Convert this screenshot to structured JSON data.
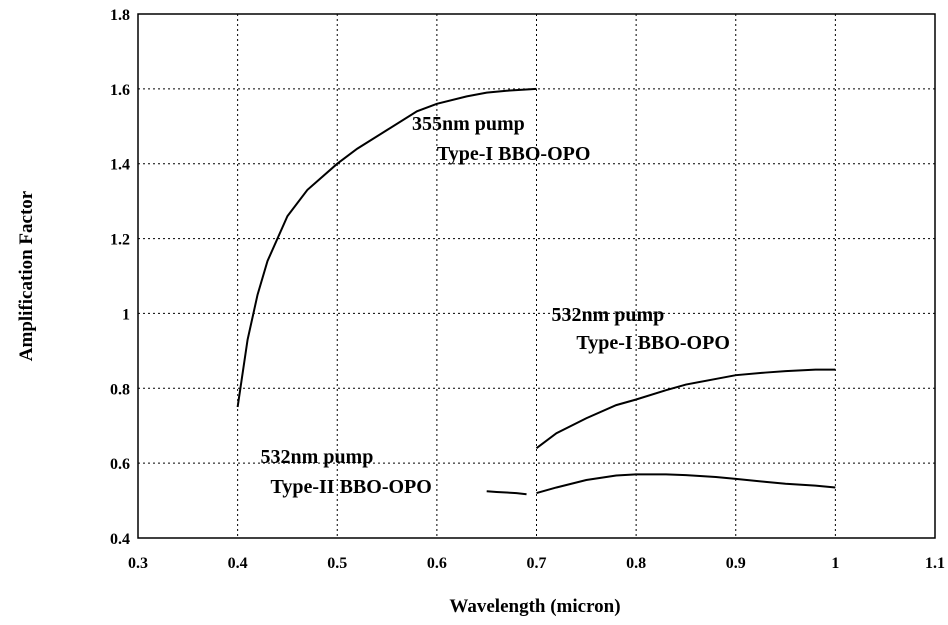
{
  "chart_data": {
    "type": "line",
    "xlabel": "Wavelength  (micron)",
    "ylabel": "Amplification Factor",
    "xlim": [
      0.3,
      1.1
    ],
    "ylim": [
      0.4,
      1.8
    ],
    "xticks": [
      "0.3",
      "0.4",
      "0.5",
      "0.6",
      "0.7",
      "0.8",
      "0.9",
      "1",
      "1.1"
    ],
    "yticks": [
      "0.4",
      "0.6",
      "0.8",
      "1",
      "1.2",
      "1.4",
      "1.6",
      "1.8"
    ],
    "grid": true,
    "series": [
      {
        "x": [
          0.4,
          0.41,
          0.42,
          0.43,
          0.45,
          0.47,
          0.5,
          0.52,
          0.55,
          0.58,
          0.6,
          0.63,
          0.65,
          0.67,
          0.7
        ],
        "y": [
          0.75,
          0.93,
          1.05,
          1.14,
          1.26,
          1.33,
          1.4,
          1.44,
          1.49,
          1.54,
          1.56,
          1.58,
          1.59,
          1.595,
          1.6
        ]
      },
      {
        "x": [
          0.7,
          0.72,
          0.75,
          0.78,
          0.8,
          0.83,
          0.85,
          0.88,
          0.9,
          0.93,
          0.95,
          0.98,
          1.0
        ],
        "y": [
          0.64,
          0.68,
          0.72,
          0.755,
          0.77,
          0.795,
          0.81,
          0.825,
          0.835,
          0.842,
          0.846,
          0.85,
          0.85
        ]
      },
      {
        "x": [
          0.65,
          0.66,
          0.68,
          0.69
        ],
        "y": [
          0.525,
          0.523,
          0.52,
          0.517
        ]
      },
      {
        "x": [
          0.7,
          0.72,
          0.75,
          0.78,
          0.8,
          0.83,
          0.85,
          0.88,
          0.9,
          0.93,
          0.95,
          0.98,
          1.0
        ],
        "y": [
          0.52,
          0.535,
          0.555,
          0.567,
          0.57,
          0.57,
          0.568,
          0.563,
          0.558,
          0.55,
          0.545,
          0.54,
          0.535
        ]
      }
    ],
    "annotations": [
      {
        "id": "a1",
        "text": "355nm pump",
        "x": 0.575,
        "y": 1.49
      },
      {
        "id": "a2",
        "text": "Type-I BBO-OPO",
        "x": 0.6,
        "y": 1.41
      },
      {
        "id": "a3",
        "text": "532nm pump",
        "x": 0.715,
        "y": 0.98
      },
      {
        "id": "a4",
        "text": "Type-I BBO-OPO",
        "x": 0.74,
        "y": 0.905
      },
      {
        "id": "a5",
        "text": "532nm pump",
        "x": 0.423,
        "y": 0.6
      },
      {
        "id": "a6",
        "text": "Type-II BBO-OPO",
        "x": 0.433,
        "y": 0.52
      }
    ]
  }
}
